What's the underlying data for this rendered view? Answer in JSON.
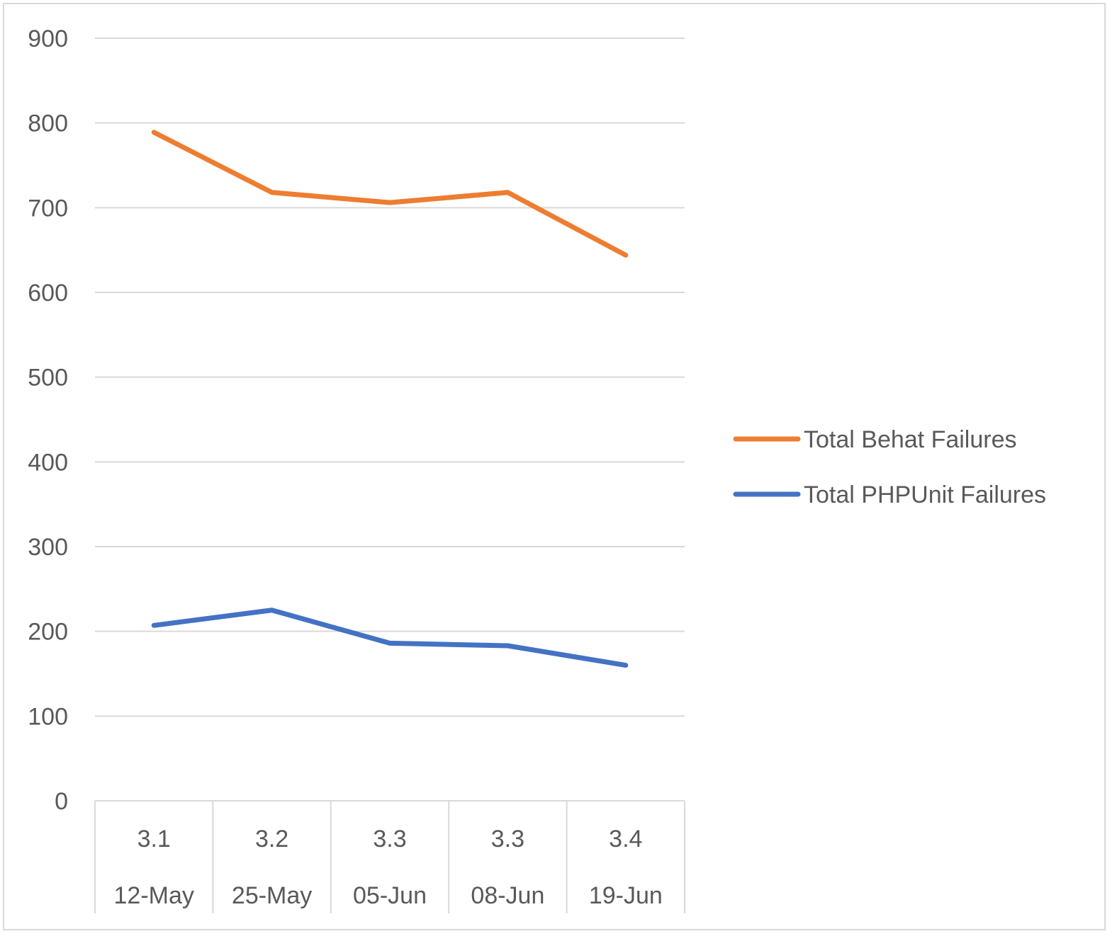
{
  "chart_data": {
    "type": "line",
    "title": "",
    "xlabel": "",
    "ylabel": "",
    "ylim": [
      0,
      900
    ],
    "yticks": [
      0,
      100,
      200,
      300,
      400,
      500,
      600,
      700,
      800,
      900
    ],
    "grid": true,
    "legend_position": "right",
    "categories": [
      {
        "version": "3.1",
        "date": "12-May"
      },
      {
        "version": "3.2",
        "date": "25-May"
      },
      {
        "version": "3.3",
        "date": "05-Jun"
      },
      {
        "version": "3.3",
        "date": "08-Jun"
      },
      {
        "version": "3.4",
        "date": "19-Jun"
      }
    ],
    "series": [
      {
        "name": "Total Behat Failures",
        "color": "#ed7d31",
        "values": [
          789,
          718,
          706,
          718,
          644
        ]
      },
      {
        "name": "Total PHPUnit Failures",
        "color": "#4472c4",
        "values": [
          207,
          225,
          186,
          183,
          160
        ]
      }
    ]
  }
}
